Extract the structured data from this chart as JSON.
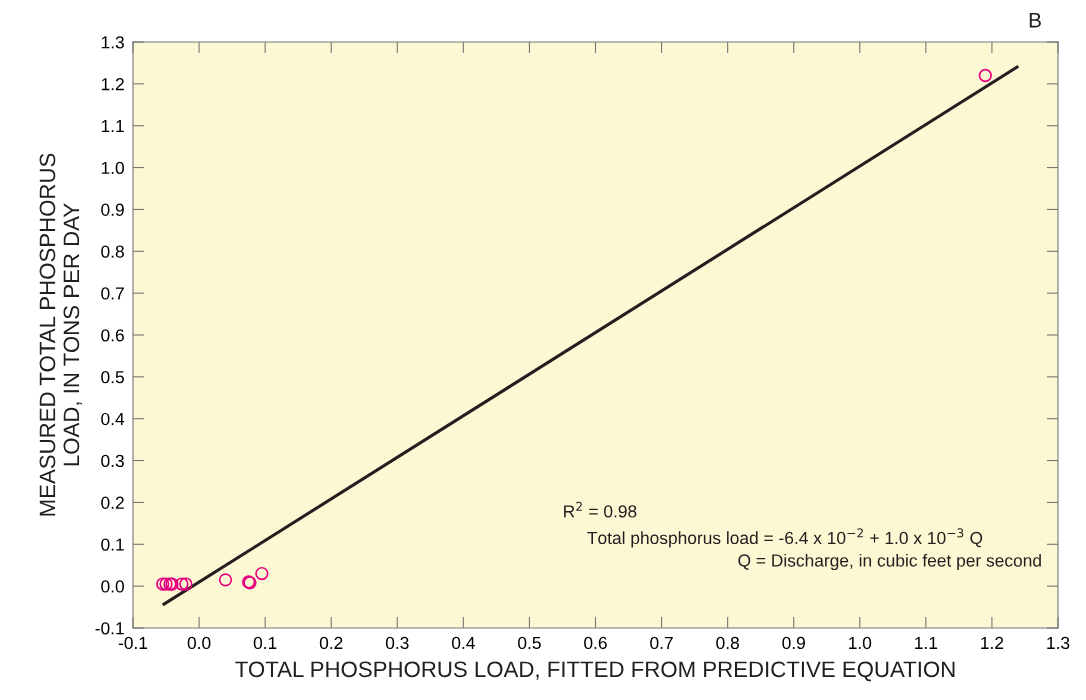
{
  "chart_data": {
    "type": "scatter",
    "xlabel": "TOTAL PHOSPHORUS LOAD, FITTED FROM PREDICTIVE EQUATION",
    "ylabel": "MEASURED TOTAL PHOSPHORUS\nLOAD, IN TONS PER DAY",
    "annotations": [
      "B",
      "R$^{2}$ = 0.98",
      "Total phosphorus load = -6.4 x 10$^{−2}$ + 1.0 x 10$^{−3}$ Q",
      "Q = Discharge, in cubic feet per second"
    ],
    "series": [
      {
        "color": "#e5007e",
        "marker": "circle",
        "x": [
          -0.055,
          -0.05,
          -0.044,
          -0.041,
          -0.026,
          -0.02,
          0.04,
          0.075,
          0.077,
          0.095,
          1.19
        ],
        "values": [
          0.005,
          0.005,
          0.005,
          0.005,
          0.005,
          0.005,
          0.015,
          0.01,
          0.008,
          0.03,
          1.22
        ]
      },
      {
        "type": "line",
        "color": "#231f20",
        "marker": "none",
        "line_style": "solid",
        "x": [
          -0.053,
          1.238
        ],
        "values": [
          -0.043,
          1.24
        ]
      }
    ],
    "xlim": [
      -0.1,
      1.3
    ],
    "ylim": [
      -0.1,
      1.3
    ],
    "xticks": [
      -0.1,
      {
        "value": 0,
        "label": "0.0"
      },
      0.1,
      0.2,
      0.3,
      0.4,
      0.5,
      0.6,
      0.7,
      0.8,
      0.9,
      {
        "value": 1,
        "label": "1.0"
      },
      1.1,
      1.2,
      1.3
    ],
    "yticks": [
      -0.1,
      {
        "value": 0,
        "label": "0.0"
      },
      0.1,
      0.2,
      0.3,
      0.4,
      0.5,
      0.6,
      0.7,
      0.8,
      0.9,
      {
        "value": 1,
        "label": "1.0"
      },
      1.1,
      1.2,
      1.3
    ],
    "grid": false,
    "legend": false
  }
}
